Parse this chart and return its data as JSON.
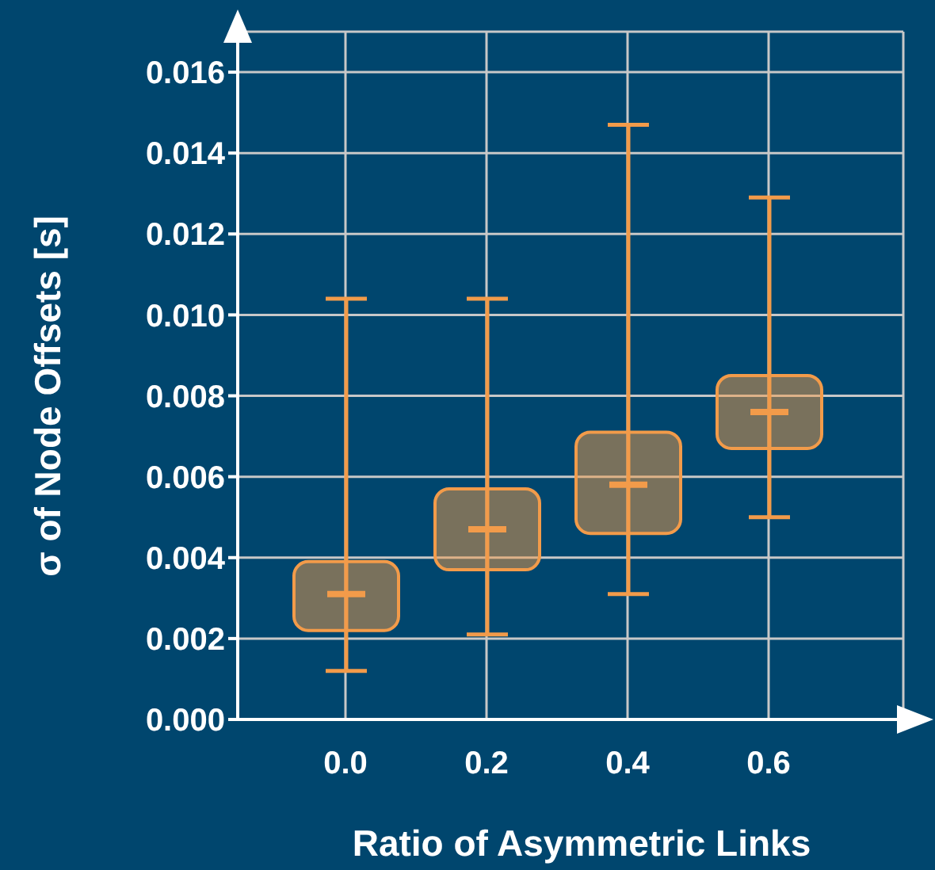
{
  "chart_data": {
    "type": "box",
    "xlabel": "Ratio of Asymmetric Links",
    "ylabel": "σ of Node Offsets [s]",
    "categories": [
      "0.0",
      "0.2",
      "0.4",
      "0.6"
    ],
    "boxes": [
      {
        "low": 0.0012,
        "q1": 0.0022,
        "median": 0.0031,
        "q3": 0.0039,
        "high": 0.0104
      },
      {
        "low": 0.0021,
        "q1": 0.0037,
        "median": 0.0047,
        "q3": 0.0057,
        "high": 0.0104
      },
      {
        "low": 0.0031,
        "q1": 0.0046,
        "median": 0.0058,
        "q3": 0.0071,
        "high": 0.0147
      },
      {
        "low": 0.005,
        "q1": 0.0067,
        "median": 0.0076,
        "q3": 0.0085,
        "high": 0.0129
      }
    ],
    "color": "#f29b4a",
    "ylim": [
      0,
      0.017
    ],
    "yticks": [
      {
        "value": 0,
        "label": "0.000"
      },
      {
        "value": 0.002,
        "label": "0.002"
      },
      {
        "value": 0.004,
        "label": "0.004"
      },
      {
        "value": 0.006,
        "label": "0.006"
      },
      {
        "value": 0.008,
        "label": "0.008"
      },
      {
        "value": 0.01,
        "label": "0.010"
      },
      {
        "value": 0.012,
        "label": "0.012"
      },
      {
        "value": 0.014,
        "label": "0.014"
      },
      {
        "value": 0.016,
        "label": "0.016"
      }
    ],
    "grid": true
  }
}
